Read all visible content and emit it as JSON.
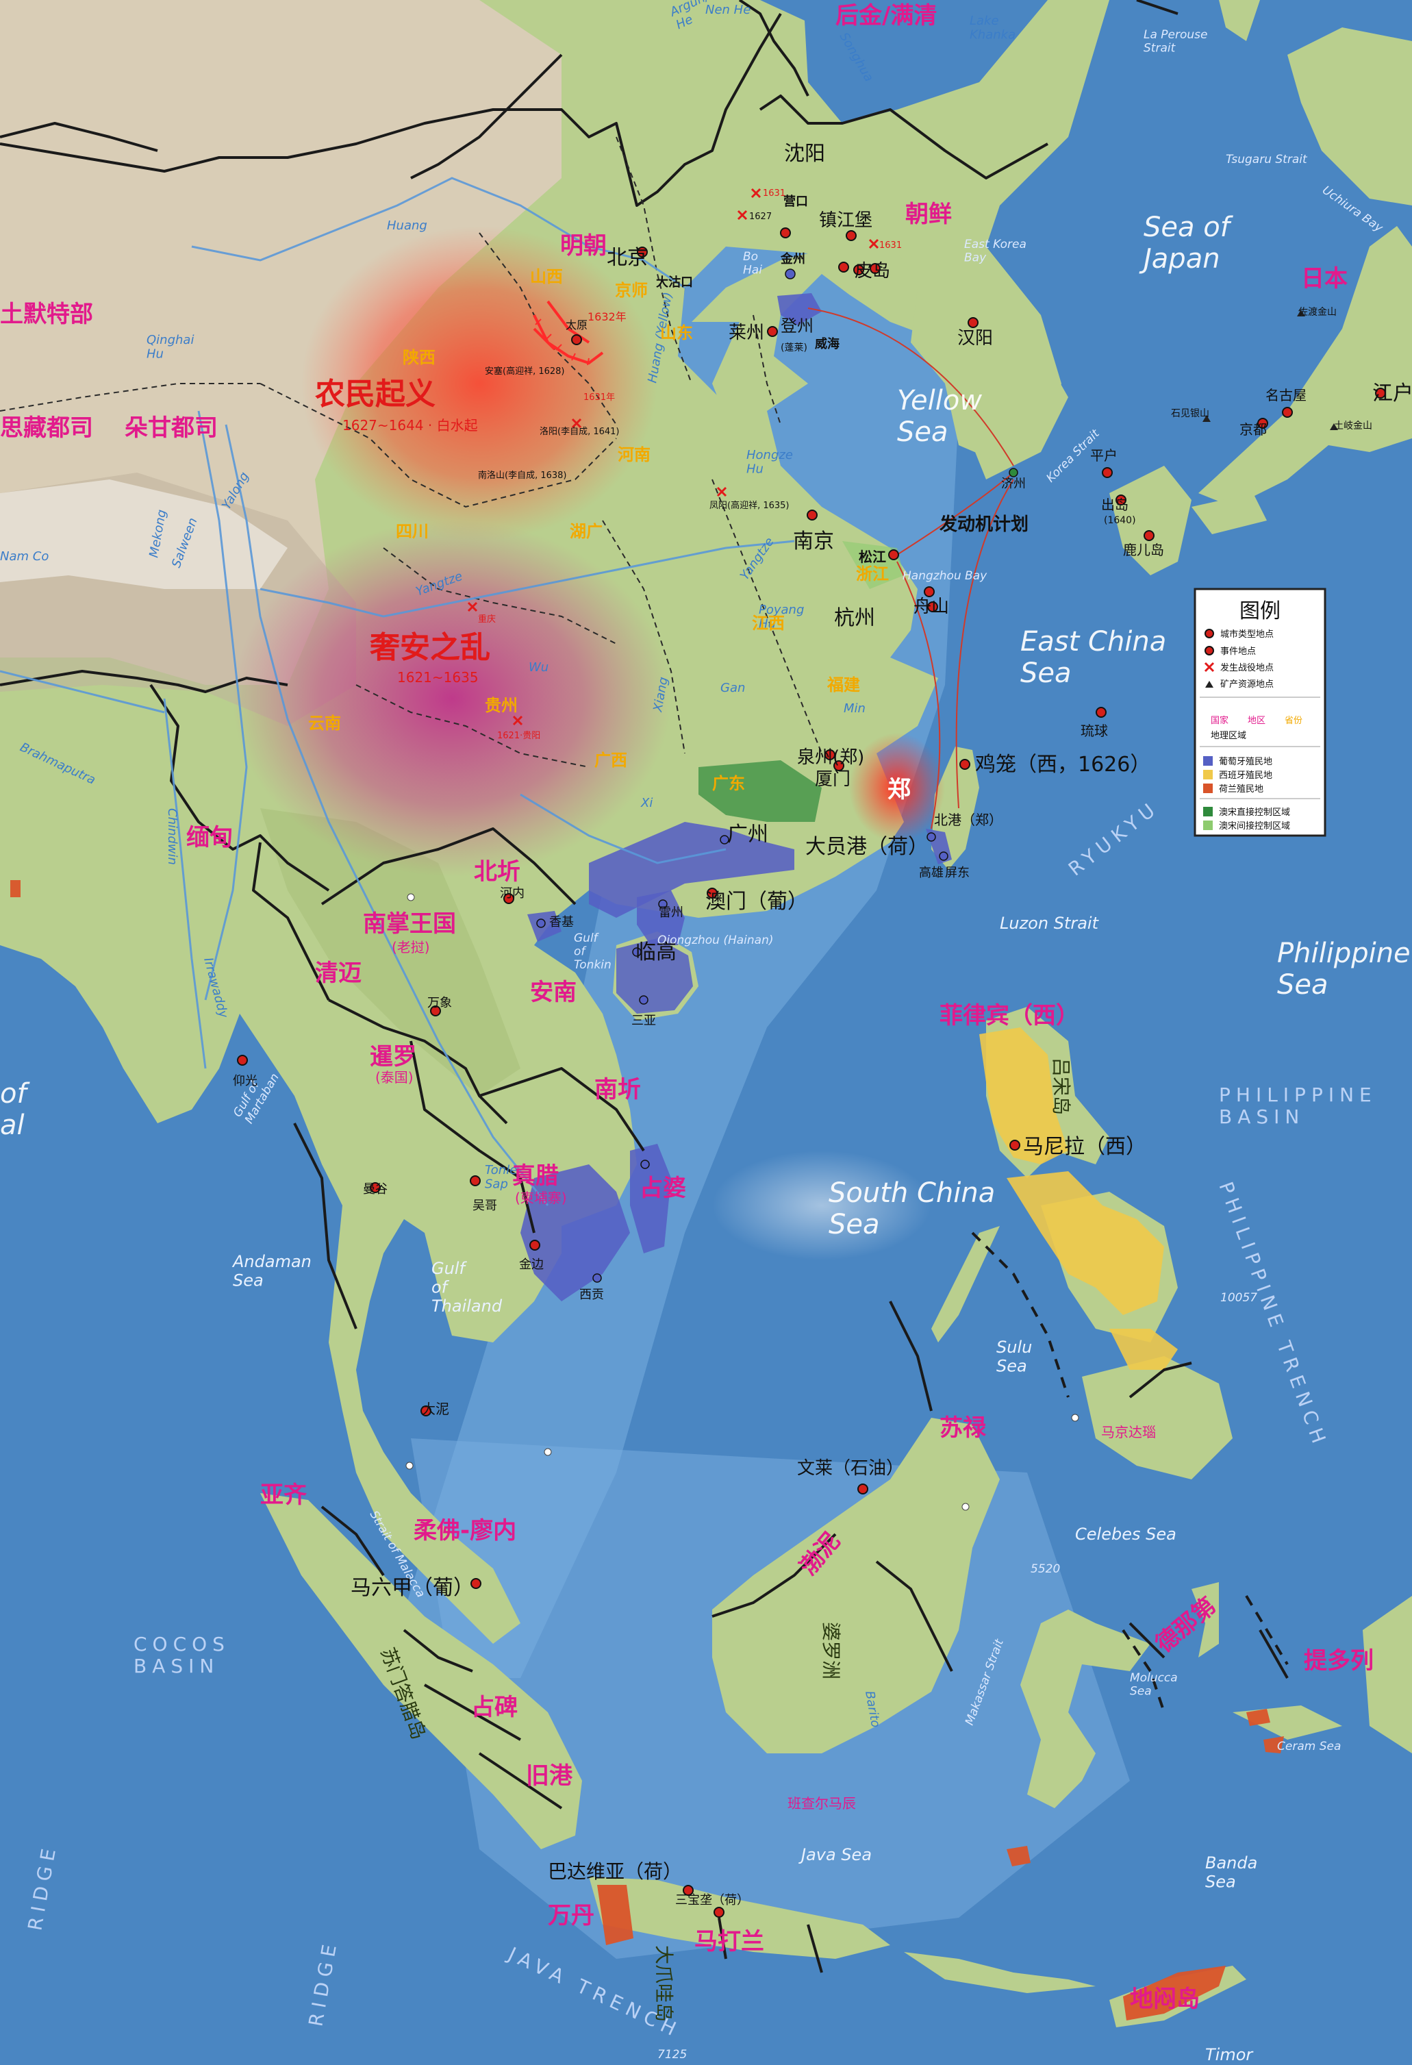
{
  "map": {
    "legend": {
      "title": "图例",
      "city_type": "城市类型地点",
      "event_place": "事件地点",
      "battle_place": "发生战役地点",
      "mine_place": "矿产资源地点",
      "label_country": "国家",
      "label_region": "地区",
      "label_province": "省份",
      "label_geo": "地理区域",
      "portugal": "葡萄牙殖民地",
      "spain": "西班牙殖民地",
      "netherlands": "荷兰殖民地",
      "aomen_direct": "澳宋直接控制区域",
      "aomen_indirect": "澳宋间接控制区域"
    },
    "colors": {
      "sea": "#4a86c2",
      "land": "#b9cf8e",
      "highland": "#d8cfb8",
      "portugal": "#5560c4",
      "spain": "#f0c94a",
      "netherlands": "#d9542a",
      "aomen_direct": "#2f8a3c",
      "aomen_indirect": "#8ecb6f",
      "country_label": "#e21a8c",
      "province_label": "#f2a900",
      "event": "#e21a1a"
    },
    "states": {
      "houjin": "后金/满清",
      "chaoxian": "朝鲜",
      "riben": "日本",
      "mingchao": "明朝",
      "tumote": "土默特部",
      "wusizang": "思藏都司",
      "duogan": "朵甘都司",
      "miandian": "缅甸",
      "beiqi": "北圻",
      "nanzhang": "南掌王国",
      "nanzhang_sub": "(老挝)",
      "qingmai": "清迈",
      "annan": "安南",
      "xianluo": "暹罗",
      "xianluo_sub": "(泰国)",
      "nanqi": "南圻",
      "zhenla": "真腊",
      "zhenla_sub": "(柬埔寨)",
      "zhanpo": "占婆",
      "feilvbin": "菲律宾（西）",
      "sulu": "苏禄",
      "boni": "渤泥",
      "maguindanao": "马京达瑙",
      "yaqi": "亚齐",
      "rofo": "柔佛-廖内",
      "zhanbei": "占碑",
      "jiugang": "旧港",
      "wandan": "万丹",
      "madalan": "马打兰",
      "bancharmasin": "班查尔马辰",
      "denate": "德那第",
      "tiduolie": "提多列",
      "dimandao": "地闷岛",
      "zheng": "郑"
    },
    "provinces": {
      "jingshi": "京师",
      "shanxi": "山西",
      "shandong": "山东",
      "henan": "河南",
      "shaanxi": "陕西",
      "sichuan": "四川",
      "huguang": "湖广",
      "guizhou": "贵州",
      "yunnan": "云南",
      "guangxi": "广西",
      "guangdong": "广东",
      "zhejiang": "浙江",
      "jiangxi": "江西",
      "fujian": "福建"
    },
    "cities": {
      "shenyang": "沈阳",
      "yingkou": "营口",
      "zhenjiangbao": "镇江堡",
      "beijing": "北京",
      "dagukou": "大沽口",
      "jinzhou": "金州",
      "pidao": "皮岛",
      "taiyuan": "太原",
      "laizhou": "莱州",
      "dengzhou": "登州",
      "penglai": "(蓬莱)",
      "weihai": "威海",
      "hanyang": "汉阳",
      "jeju": "济州",
      "nanjing": "南京",
      "songjiang": "松江",
      "hangzhou": "杭州",
      "zhoushan": "舟山",
      "quanzhou": "泉州(郑)",
      "xiamen": "厦门",
      "jilong": "鸡笼（西，1626）",
      "beigang": "北港（郑）",
      "dayuangang": "大员港（荷）",
      "gaoxiong": "高雄",
      "pingdong": "屏东",
      "guangzhou": "广州",
      "aomen": "澳门（葡）",
      "leizhou": "雷州",
      "lingao": "临高",
      "sanya": "三亚",
      "henei": "河内",
      "xiangji": "香基",
      "wanxiang": "万象",
      "yangguang": "仰光",
      "mangu": "曼谷",
      "wuge": "吴哥",
      "jinbian": "金边",
      "xigong": "西贡",
      "manila": "马尼拉（西）",
      "dani": "大泥",
      "maliujia": "马六甲（葡）",
      "wenlai": "文莱（石油）",
      "batavia": "巴达维亚（荷）",
      "sanbaolong": "三宝垄（荷）",
      "jiangdu": "江户",
      "mingguwu": "名古屋",
      "jingdu": "京都",
      "pinghu": "平户",
      "chudao": "出岛",
      "chudao_year": "(1640)",
      "luerdao": "鹿儿岛",
      "liuqiu": "琉球",
      "zuodu": "佐渡金山",
      "shijian": "石见银山",
      "tuqi": "土岐金山",
      "fadongji": "发动机计划"
    },
    "events": {
      "nongmin": "农民起义",
      "nongmin_date": "1627~1644 · 白水起",
      "sheanzhiluan": "奢安之乱",
      "sheanzhiluan_date": "1621~1635"
    },
    "battles": {
      "b1631a": "1631",
      "b1627": "1627",
      "b1631b": "1631",
      "b1632": "1632年",
      "b1628": "安塞(高迎祥, 1628)",
      "b1631c": "1631年",
      "b1641": "洛阳(李自成, 1641)",
      "b1638": "南洛山(李自成, 1638)",
      "b1635": "凤阳(高迎祥, 1635)",
      "chongqing": "重庆",
      "guiyang": "1621·贵阳"
    },
    "seas": {
      "japan": "Sea of\nJapan",
      "yellow": "Yellow\nSea",
      "eastchina": "East China\nSea",
      "southchina": "South China\nSea",
      "philippine": "Philippine\nSea",
      "sulu": "Sulu\nSea",
      "celebes": "Celebes Sea",
      "java": "Java Sea",
      "banda": "Banda\nSea",
      "andaman": "Andaman\nSea",
      "thailand": "Gulf\nof\nThailand",
      "tonkin": "Gulf\nof\nTonkin",
      "bohai": "Bo\nHai",
      "bengal": "of\nal",
      "timor": "Timor",
      "molucca": "Molucca\nSea",
      "ceram": "Ceram Sea",
      "luzon": "Luzon Strait",
      "korea": "Korea Strait",
      "tsugaru": "Tsugaru Strait",
      "laperouse": "La Perouse\nStrait",
      "eastkorea": "East Korea\nBay",
      "hangzhoubay": "Hangzhou Bay",
      "martaban": "Gulf of\nMartaban",
      "malacca": "Strait of Malacca",
      "makassar": "Makassar Strait",
      "qiongzhou": "Qiongzhou (Hainan)",
      "uchiura": "Uchiura Bay",
      "ryukyu": "RYUKYU",
      "philbasin": "PHILIPPINE\nBASIN",
      "philtrench": "PHILIPPINE TRENCH",
      "cocos": "COCOS\nBASIN",
      "javatrench": "JAVA TRENCH",
      "ridge": "RIDGE",
      "depth1": "10057",
      "depth2": "5520",
      "depth3": "7125"
    },
    "rivers": {
      "huang": "Huang",
      "yangtze": "Yangtze",
      "yangtze2": "Yangtze",
      "mekong": "Mekong",
      "salween": "Salween",
      "yalong": "Yalong",
      "brahmaputra": "Brahmaputra",
      "chindwin": "Chindwin",
      "irrawaddy": "Irrawaddy",
      "yellowriver": "Huang (Yellow)",
      "hongze": "Hongze\nHu",
      "poyang": "Poyang\nHu",
      "xiang": "Xiang",
      "gan": "Gan",
      "min": "Min",
      "songhua": "Songhua",
      "khanka": "Lake\nKhanka",
      "qinghai": "Qinghai\nHu",
      "namco": "Nam Co",
      "tonle": "Tonle\nSap",
      "barito": "Barito",
      "wu": "Wu",
      "xijiang": "Xi",
      "amur": "Argun/\nHe",
      "nenhe": "Nen He"
    },
    "geo": {
      "lusong": "吕宋岛",
      "poluozhou": "婆罗洲",
      "sumenda": "苏门答腊岛",
      "dazhua": "大爪哇岛"
    }
  }
}
